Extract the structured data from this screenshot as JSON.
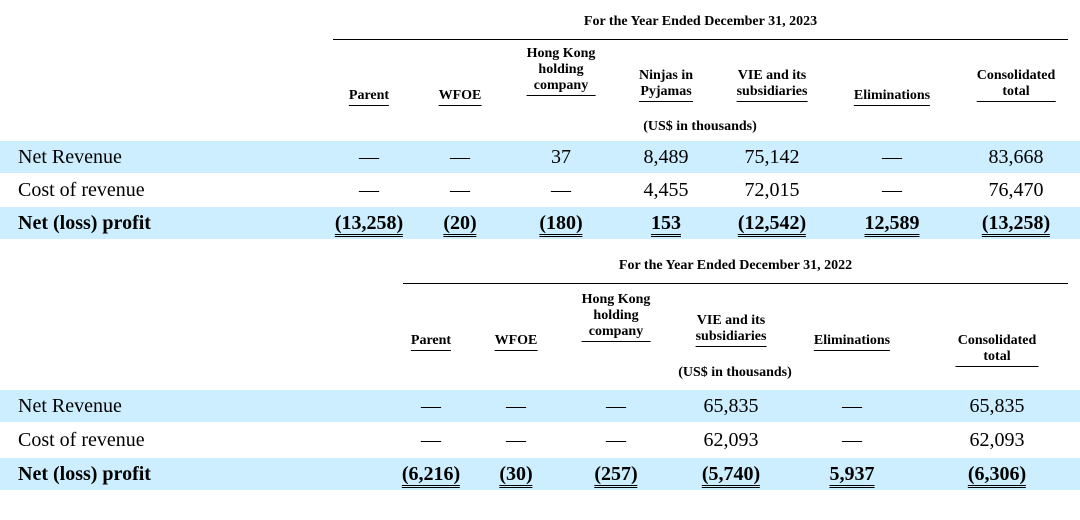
{
  "tables": [
    {
      "period": "For the Year Ended December 31, 2023",
      "units": "(US$ in thousands)",
      "columns": [
        "Parent",
        "WFOE",
        "Hong Kong\nholding\ncompany",
        "Ninjas in\nPyjamas",
        "VIE and its\nsubsidiaries",
        "Eliminations",
        "Consolidated\ntotal"
      ],
      "rows": [
        {
          "label": "Net Revenue",
          "values": [
            "—",
            "—",
            "37",
            "8,489",
            "75,142",
            "—",
            "83,668"
          ]
        },
        {
          "label": "Cost of revenue",
          "values": [
            "—",
            "—",
            "—",
            "4,455",
            "72,015",
            "—",
            "76,470"
          ]
        },
        {
          "label": "Net (loss) profit",
          "values": [
            "(13,258)",
            "(20)",
            "(180)",
            "153",
            "(12,542)",
            "12,589",
            "(13,258)"
          ]
        }
      ]
    },
    {
      "period": "For the Year Ended December 31, 2022",
      "units": "(US$ in thousands)",
      "columns": [
        "Parent",
        "WFOE",
        "Hong Kong\nholding\ncompany",
        "VIE and its\nsubsidiaries",
        "Eliminations",
        "Consolidated total"
      ],
      "rows": [
        {
          "label": "Net Revenue",
          "values": [
            "—",
            "—",
            "—",
            "65,835",
            "—",
            "65,835"
          ]
        },
        {
          "label": "Cost of revenue",
          "values": [
            "—",
            "—",
            "—",
            "62,093",
            "—",
            "62,093"
          ]
        },
        {
          "label": "Net (loss) profit",
          "values": [
            "(6,216)",
            "(30)",
            "(257)",
            "(5,740)",
            "5,937",
            "(6,306)"
          ]
        }
      ]
    }
  ]
}
